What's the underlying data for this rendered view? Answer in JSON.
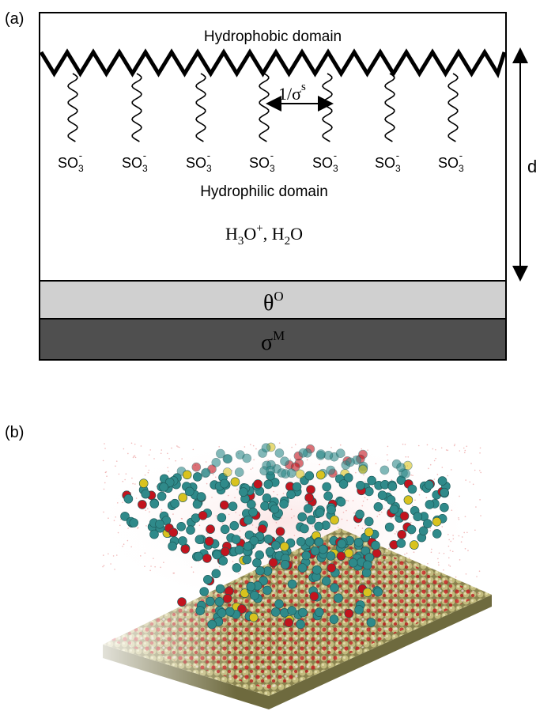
{
  "panel_a": {
    "label": "(a)",
    "hydrophobic_label": "Hydrophobic domain",
    "spacing_label": {
      "text": "1/σ",
      "sup": "s"
    },
    "sulfonate_groups": [
      {
        "text": "SO",
        "sub": "3",
        "charge": "-"
      },
      {
        "text": "SO",
        "sub": "3",
        "charge": "-"
      },
      {
        "text": "SO",
        "sub": "3",
        "charge": "-"
      },
      {
        "text": "SO",
        "sub": "3",
        "charge": "-"
      },
      {
        "text": "SO",
        "sub": "3",
        "charge": "-"
      },
      {
        "text": "SO",
        "sub": "3",
        "charge": "-"
      },
      {
        "text": "SO",
        "sub": "3",
        "charge": "-"
      }
    ],
    "hydrophilic_label": "Hydrophilic domain",
    "species_label": {
      "parts": [
        "H",
        "3",
        "O",
        "+",
        ", H",
        "2",
        "O"
      ]
    },
    "thickness_label": "d",
    "oxide_layer": {
      "symbol": "θ",
      "sup": "O"
    },
    "metal_layer": {
      "symbol": "σ",
      "sup": "M"
    }
  },
  "panel_b": {
    "label": "(b)"
  }
}
